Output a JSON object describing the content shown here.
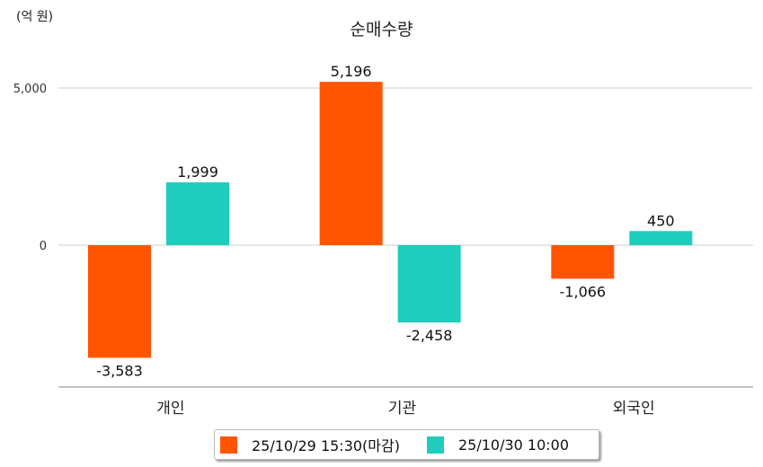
{
  "chart_data": {
    "type": "bar",
    "title": "순매수량",
    "unit_label": "(억 원)",
    "categories": [
      "개인",
      "기관",
      "외국인"
    ],
    "series": [
      {
        "name": "25/10/29 15:30(마감)",
        "color": "#ff5500",
        "values": [
          -3583,
          5196,
          -1066
        ],
        "labels": [
          "-3,583",
          "5,196",
          "-1,066"
        ]
      },
      {
        "name": "25/10/30 10:00",
        "color": "#1ecdbd",
        "values": [
          1999,
          -2458,
          450
        ],
        "labels": [
          "1,999",
          "-2,458",
          "450"
        ]
      }
    ],
    "yticks": [
      {
        "value": 0,
        "label": "0"
      },
      {
        "value": 5000,
        "label": "5,000"
      }
    ],
    "ylim": [
      -4514,
      6286
    ],
    "grid": true,
    "legend": "bottom"
  }
}
